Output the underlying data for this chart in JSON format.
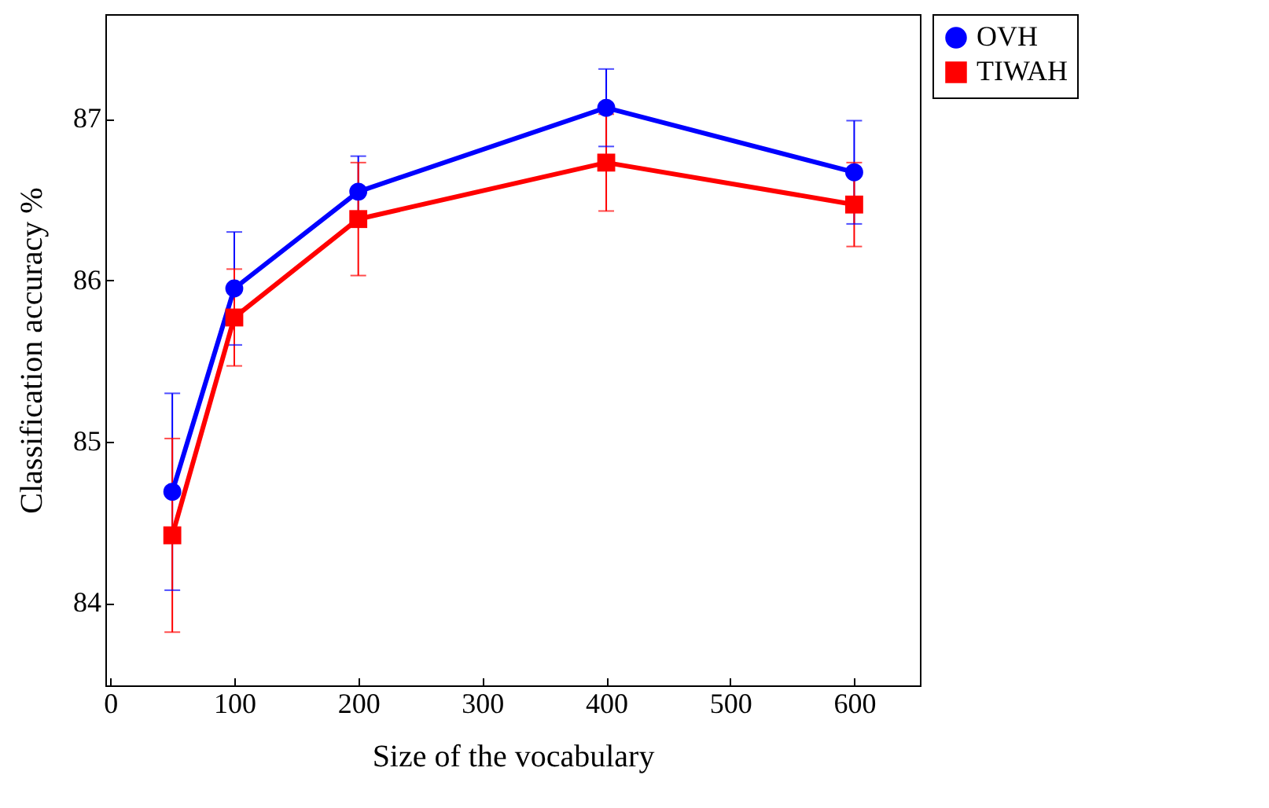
{
  "chart_data": {
    "type": "line",
    "xlabel": "Size of the vocabulary",
    "ylabel": "Classification accuracy %",
    "x": [
      50,
      100,
      200,
      400,
      600
    ],
    "series": [
      {
        "name": "OVH",
        "color": "#0000ff",
        "marker": "circle",
        "values": [
          84.69,
          85.95,
          86.55,
          87.07,
          86.67
        ],
        "errors": [
          0.61,
          0.35,
          0.22,
          0.24,
          0.32
        ]
      },
      {
        "name": "TIWAH",
        "color": "#ff0000",
        "marker": "square",
        "values": [
          84.42,
          85.77,
          86.38,
          86.73,
          86.47
        ],
        "errors": [
          0.6,
          0.3,
          0.35,
          0.3,
          0.26
        ]
      }
    ],
    "xlim": [
      -4,
      653
    ],
    "xticks": [
      0,
      100,
      200,
      300,
      400,
      500,
      600
    ],
    "ylim": [
      83.49,
      87.65
    ],
    "yticks": [
      84,
      85,
      86,
      87
    ],
    "grid": false,
    "legend": "top right",
    "line_style": "solid"
  }
}
